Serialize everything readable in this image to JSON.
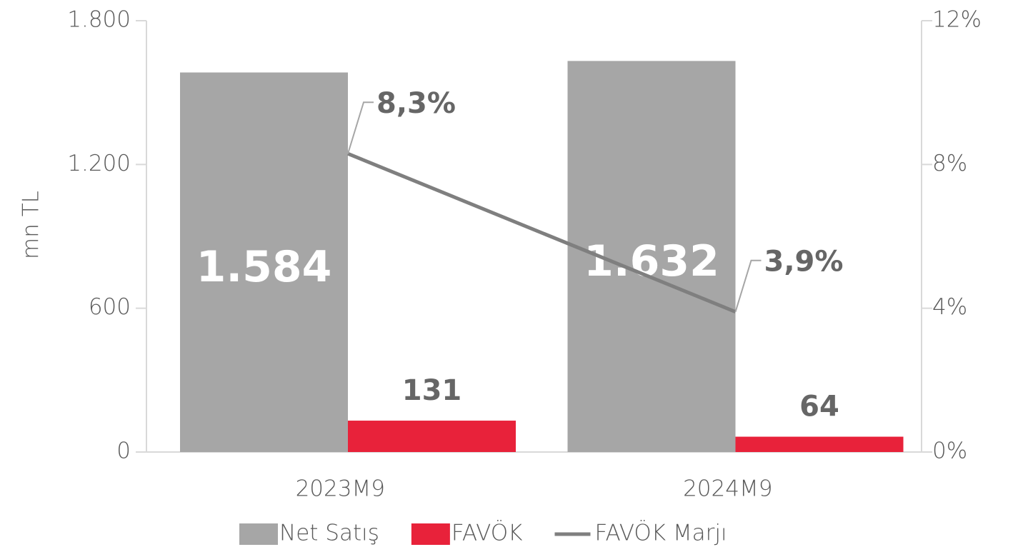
{
  "chart_data": {
    "type": "bar",
    "categories": [
      "2023M9",
      "2024M9"
    ],
    "series": [
      {
        "name": "Net Satış",
        "type": "bar",
        "color": "#a6a6a6",
        "values": [
          1584,
          1632
        ],
        "value_labels": [
          "1.584",
          "1.632"
        ]
      },
      {
        "name": "FAVÖK",
        "type": "bar",
        "color": "#e8223a",
        "values": [
          131,
          64
        ]
      },
      {
        "name": "FAVÖK Marjı",
        "type": "line",
        "axis": "y2",
        "color": "#7f7f7f",
        "values": [
          8.3,
          3.9
        ],
        "value_labels": [
          "8,3%",
          "3,9%"
        ]
      }
    ],
    "y_label": "mn TL",
    "ylim": [
      0,
      1800
    ],
    "yticks": [
      0,
      600,
      {
        "value": 1200,
        "label": "1.200"
      },
      {
        "value": 1800,
        "label": "1.800"
      }
    ],
    "y2lim": [
      0,
      12
    ],
    "y2ticks": [
      {
        "value": 0,
        "label": "0%"
      },
      {
        "value": 4,
        "label": "4%"
      },
      {
        "value": 8,
        "label": "8%"
      },
      {
        "value": 12,
        "label": "12%"
      }
    ],
    "legend": "bottom"
  }
}
